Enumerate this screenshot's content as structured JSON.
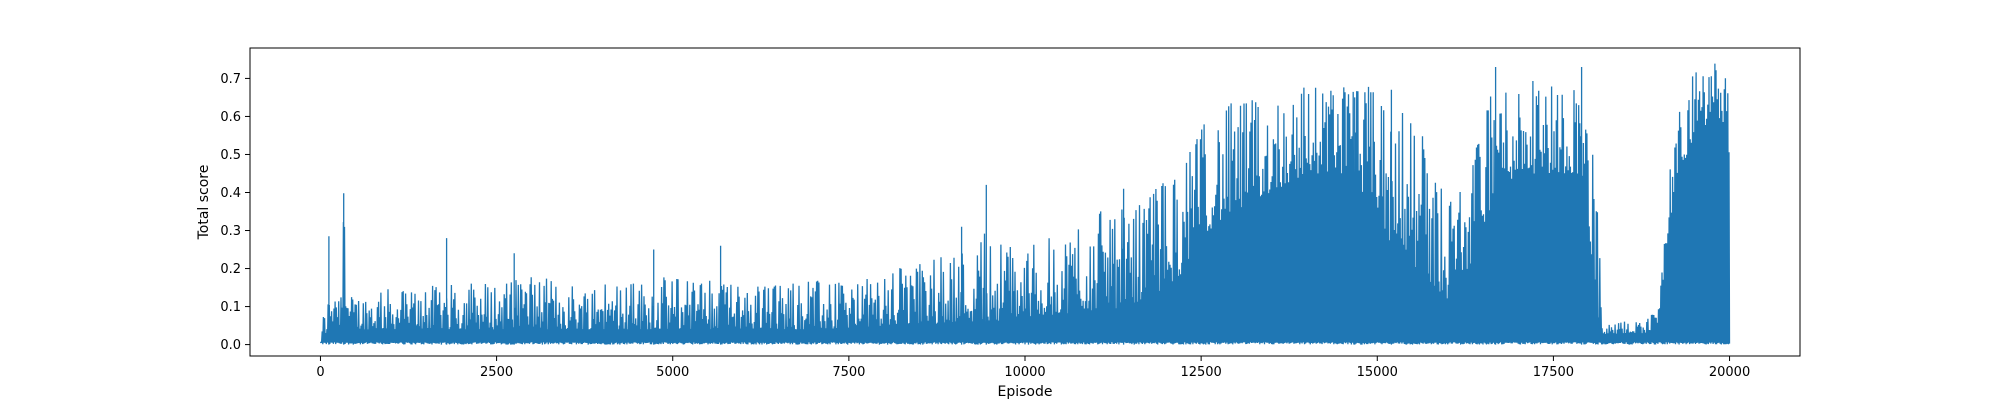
{
  "chart_data": {
    "type": "line",
    "title": "",
    "xlabel": "Episode",
    "ylabel": "Total score",
    "xlim": [
      -1000,
      21000
    ],
    "ylim": [
      -0.03,
      0.78
    ],
    "xticks": [
      0,
      2500,
      5000,
      7500,
      10000,
      12500,
      15000,
      17500,
      20000
    ],
    "xtick_labels": [
      "0",
      "2500",
      "5000",
      "7500",
      "10000",
      "12500",
      "15000",
      "17500",
      "20000"
    ],
    "yticks": [
      0.0,
      0.1,
      0.2,
      0.3,
      0.4,
      0.5,
      0.6,
      0.7
    ],
    "ytick_labels": [
      "0.0",
      "0.1",
      "0.2",
      "0.3",
      "0.4",
      "0.5",
      "0.6",
      "0.7"
    ],
    "grid": false,
    "legend": false,
    "series": [
      {
        "color": "#1f77b4",
        "envelope": {
          "episode": [
            0,
            50,
            120,
            200,
            280,
            330,
            400,
            1000,
            2000,
            3000,
            4000,
            5000,
            6000,
            7000,
            7500,
            8000,
            8500,
            9000,
            9500,
            10000,
            10500,
            11000,
            11500,
            12000,
            12300,
            12600,
            13000,
            13500,
            14000,
            14500,
            15000,
            15150,
            15300,
            15500,
            15800,
            16000,
            16300,
            16500,
            16700,
            17000,
            17500,
            17900,
            18100,
            18200,
            18500,
            18800,
            19000,
            19100,
            19300,
            19500,
            19800,
            20000
          ],
          "max_score": [
            0.02,
            0.1,
            0.13,
            0.28,
            0.12,
            0.39,
            0.13,
            0.15,
            0.16,
            0.18,
            0.16,
            0.18,
            0.16,
            0.17,
            0.16,
            0.19,
            0.22,
            0.25,
            0.3,
            0.26,
            0.29,
            0.35,
            0.36,
            0.45,
            0.5,
            0.62,
            0.64,
            0.66,
            0.69,
            0.69,
            0.68,
            0.6,
            0.66,
            0.6,
            0.5,
            0.4,
            0.45,
            0.6,
            0.7,
            0.7,
            0.7,
            0.7,
            0.5,
            0.05,
            0.06,
            0.07,
            0.1,
            0.4,
            0.65,
            0.72,
            0.75,
            0.7
          ],
          "base_score": [
            0.0,
            0.01,
            0.05,
            0.05,
            0.05,
            0.04,
            0.04,
            0.04,
            0.04,
            0.04,
            0.04,
            0.04,
            0.04,
            0.04,
            0.04,
            0.05,
            0.05,
            0.06,
            0.06,
            0.07,
            0.08,
            0.09,
            0.1,
            0.15,
            0.2,
            0.3,
            0.35,
            0.4,
            0.45,
            0.45,
            0.35,
            0.25,
            0.3,
            0.2,
            0.15,
            0.12,
            0.2,
            0.3,
            0.4,
            0.45,
            0.45,
            0.45,
            0.1,
            0.02,
            0.03,
            0.03,
            0.05,
            0.25,
            0.45,
            0.55,
            0.58,
            0.5
          ],
          "min_score": 0.0
        },
        "spikes": [
          {
            "episode": 120,
            "score": 0.285
          },
          {
            "episode": 330,
            "score": 0.398
          },
          {
            "episode": 1790,
            "score": 0.28
          },
          {
            "episode": 2750,
            "score": 0.24
          },
          {
            "episode": 4730,
            "score": 0.25
          },
          {
            "episode": 5680,
            "score": 0.26
          },
          {
            "episode": 9100,
            "score": 0.31
          },
          {
            "episode": 9450,
            "score": 0.42
          },
          {
            "episode": 11400,
            "score": 0.41
          },
          {
            "episode": 14680,
            "score": 0.65
          },
          {
            "episode": 15200,
            "score": 0.67
          },
          {
            "episode": 16680,
            "score": 0.73
          },
          {
            "episode": 17900,
            "score": 0.73
          }
        ]
      }
    ]
  }
}
